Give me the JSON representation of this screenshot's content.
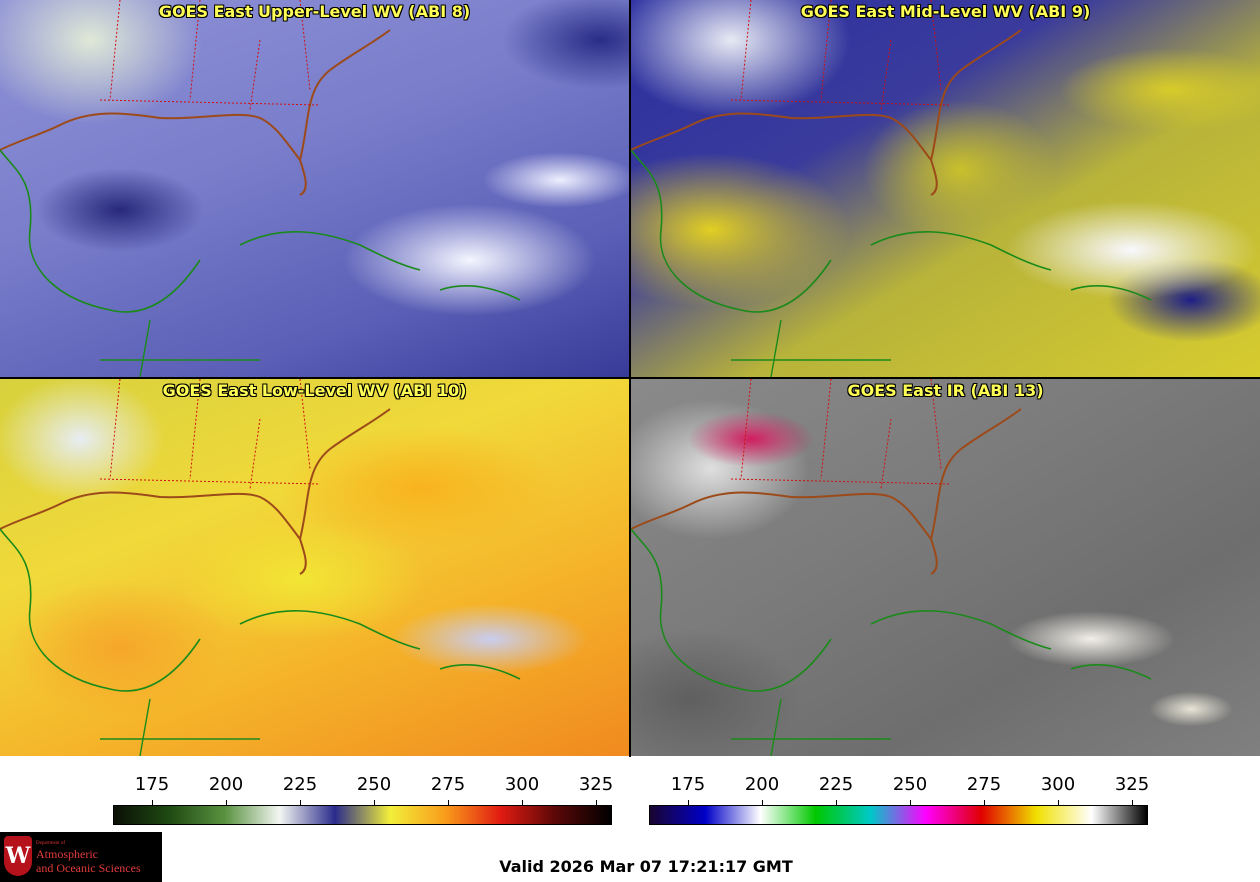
{
  "panels": [
    {
      "title": "GOES East Upper-Level WV (ABI 8)"
    },
    {
      "title": "GOES East Mid-Level WV (ABI 9)"
    },
    {
      "title": "GOES East Low-Level WV (ABI 10)"
    },
    {
      "title": "GOES East IR (ABI 13)"
    }
  ],
  "colorbars": [
    {
      "ticks": [
        "175",
        "200",
        "225",
        "250",
        "275",
        "300",
        "325"
      ],
      "colors": [
        "#0a0f06",
        "#1f4a12",
        "#58913f",
        "#f3f6f1",
        "#2a2b8c",
        "#f2ef3a",
        "#f99c1b",
        "#e11b12",
        "#5a0808",
        "#000000"
      ]
    },
    {
      "ticks": [
        "175",
        "200",
        "225",
        "250",
        "275",
        "300",
        "325"
      ],
      "colors": [
        "#1a0530",
        "#0000c8",
        "#ffffff",
        "#00c800",
        "#00c8c8",
        "#ff00ff",
        "#e00000",
        "#f0e000",
        "#ffffff",
        "#000000"
      ]
    }
  ],
  "logo": {
    "line1": "Department of",
    "line2": "Atmospheric",
    "line3": "and Oceanic Sciences",
    "crest": "W"
  },
  "valid_text": "Valid 2026 Mar 07 17:21:17 GMT"
}
